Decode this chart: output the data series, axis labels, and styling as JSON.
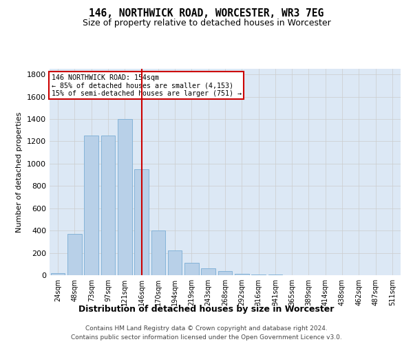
{
  "title1": "146, NORTHWICK ROAD, WORCESTER, WR3 7EG",
  "title2": "Size of property relative to detached houses in Worcester",
  "xlabel": "Distribution of detached houses by size in Worcester",
  "ylabel": "Number of detached properties",
  "categories": [
    "24sqm",
    "48sqm",
    "73sqm",
    "97sqm",
    "121sqm",
    "146sqm",
    "170sqm",
    "194sqm",
    "219sqm",
    "243sqm",
    "268sqm",
    "292sqm",
    "316sqm",
    "341sqm",
    "365sqm",
    "389sqm",
    "414sqm",
    "438sqm",
    "462sqm",
    "487sqm",
    "511sqm"
  ],
  "values": [
    20,
    370,
    1250,
    1250,
    1400,
    950,
    400,
    220,
    110,
    60,
    35,
    15,
    8,
    5,
    3,
    2,
    1,
    1,
    1,
    0,
    0
  ],
  "bar_color": "#b8d0e8",
  "bar_edge_color": "#7aadd4",
  "vline_x": 5,
  "vline_color": "#cc0000",
  "annotation_line1": "146 NORTHWICK ROAD: 154sqm",
  "annotation_line2": "← 85% of detached houses are smaller (4,153)",
  "annotation_line3": "15% of semi-detached houses are larger (751) →",
  "annotation_box_color": "#cc0000",
  "annotation_bg": "#ffffff",
  "ylim": [
    0,
    1850
  ],
  "yticks": [
    0,
    200,
    400,
    600,
    800,
    1000,
    1200,
    1400,
    1600,
    1800
  ],
  "grid_color": "#cccccc",
  "bg_color": "#dce8f5",
  "footnote1": "Contains HM Land Registry data © Crown copyright and database right 2024.",
  "footnote2": "Contains public sector information licensed under the Open Government Licence v3.0."
}
